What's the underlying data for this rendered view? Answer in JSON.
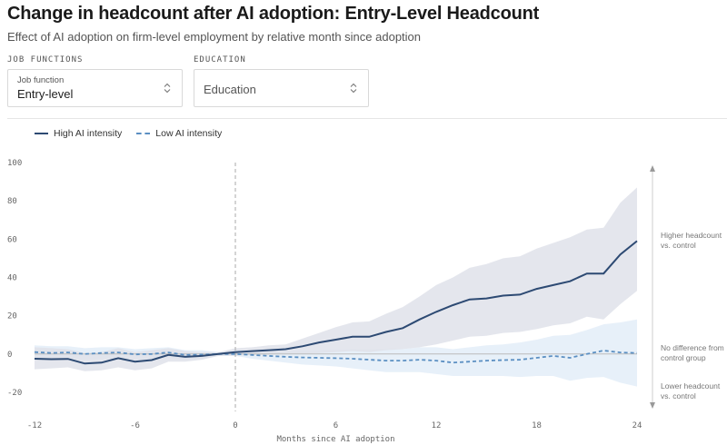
{
  "header": {
    "title": "Change in headcount after AI adoption: Entry-Level Headcount",
    "subtitle": "Effect of AI adoption on firm-level employment by relative month since adoption"
  },
  "filters": {
    "job_functions": {
      "label": "JOB FUNCTIONS",
      "small_label": "Job function",
      "value": "Entry-level"
    },
    "education": {
      "label": "EDUCATION",
      "value": "Education"
    }
  },
  "legend": {
    "high": "High AI intensity",
    "low": "Low AI intensity"
  },
  "annotations": {
    "higher": [
      "Higher headcount",
      "vs. control"
    ],
    "no_diff": [
      "No difference from",
      "control group"
    ],
    "lower": [
      "Lower headcount",
      "vs. control"
    ]
  },
  "colors": {
    "high_line": "#2d4a73",
    "high_band": "#dfe2ea",
    "low_line": "#5b8fc2",
    "low_band": "#e4eef8",
    "zero_line": "#bbbbbb",
    "adoption_line": "#aaaaaa"
  },
  "chart_data": {
    "type": "line",
    "xlabel": "Months since AI adoption",
    "ylabel": "",
    "xlim": [
      -12,
      24
    ],
    "ylim": [
      -30,
      100
    ],
    "xticks": [
      -12,
      -6,
      0,
      6,
      12,
      18,
      24
    ],
    "yticks": [
      -20,
      0,
      20,
      40,
      60,
      80,
      100
    ],
    "reference_x": 0,
    "x": [
      -12,
      -11,
      -10,
      -9,
      -8,
      -7,
      -6,
      -5,
      -4,
      -3,
      -2,
      -1,
      0,
      1,
      2,
      3,
      4,
      5,
      6,
      7,
      8,
      9,
      10,
      11,
      12,
      13,
      14,
      15,
      16,
      17,
      18,
      19,
      20,
      21,
      22,
      23,
      24
    ],
    "series": [
      {
        "name": "High AI intensity",
        "style": "solid",
        "values": [
          -2.5,
          -2.7,
          -2.6,
          -5.0,
          -4.5,
          -2.2,
          -4.0,
          -3.2,
          -0.5,
          -1.5,
          -1.0,
          0.0,
          1.0,
          1.5,
          2.0,
          2.5,
          4.0,
          6.0,
          7.5,
          9.0,
          9.0,
          11.5,
          13.5,
          18.0,
          22.0,
          25.5,
          28.5,
          29.0,
          30.5,
          31.0,
          34.0,
          36.0,
          38.0,
          42.0,
          42.0,
          52.0,
          59.0
        ],
        "lower": [
          -8,
          -7.5,
          -7,
          -9,
          -8.5,
          -7,
          -8.5,
          -7.5,
          -4,
          -4,
          -3,
          -1,
          -1,
          -0.5,
          -0.5,
          0,
          0,
          0.5,
          1,
          1.5,
          1,
          2,
          2.5,
          3.5,
          5,
          7,
          9,
          9.5,
          11,
          11.5,
          13,
          15,
          16,
          19.5,
          18,
          26,
          33
        ],
        "upper": [
          3.5,
          3,
          2.5,
          0.5,
          1,
          3,
          1,
          2,
          3,
          1.5,
          1,
          1,
          3,
          3.5,
          4.5,
          5,
          8,
          11,
          14,
          16.5,
          17,
          21,
          24.5,
          30,
          36,
          40,
          45,
          47,
          50,
          51,
          55,
          58,
          61,
          65,
          66,
          79,
          87
        ]
      },
      {
        "name": "Low AI intensity",
        "style": "dashed",
        "values": [
          1.0,
          0.5,
          0.8,
          0.0,
          0.5,
          0.8,
          -0.2,
          0.0,
          0.8,
          -0.5,
          -0.3,
          0.0,
          0.0,
          -0.5,
          -1.0,
          -1.5,
          -1.8,
          -2.0,
          -2.2,
          -2.5,
          -3.0,
          -3.5,
          -3.5,
          -3.0,
          -3.5,
          -4.5,
          -4.0,
          -3.5,
          -3.2,
          -3.0,
          -2.0,
          -1.0,
          -2.0,
          0.0,
          1.8,
          0.8,
          0.5
        ],
        "lower": [
          -2.5,
          -3,
          -2.5,
          -3,
          -2.5,
          -2,
          -3,
          -3,
          -2,
          -3,
          -2.5,
          -1,
          -1,
          -2.5,
          -3.5,
          -4.5,
          -5.5,
          -6,
          -6.5,
          -7.5,
          -8.5,
          -9.5,
          -9.5,
          -9.5,
          -10.5,
          -11.5,
          -11.5,
          -11.5,
          -11.5,
          -12,
          -11.5,
          -11.5,
          -14,
          -12.5,
          -12,
          -15,
          -17
        ],
        "upper": [
          4.5,
          4,
          4,
          3,
          3.5,
          3.5,
          2.5,
          3,
          3.5,
          2,
          2,
          1,
          1,
          1.5,
          1.5,
          1.5,
          2,
          2,
          2.2,
          2.5,
          2.5,
          2.5,
          2.5,
          3.5,
          3.5,
          2.5,
          3.5,
          4.5,
          5,
          6,
          7.5,
          9.5,
          10,
          12.5,
          15.5,
          16.5,
          18
        ]
      }
    ]
  }
}
